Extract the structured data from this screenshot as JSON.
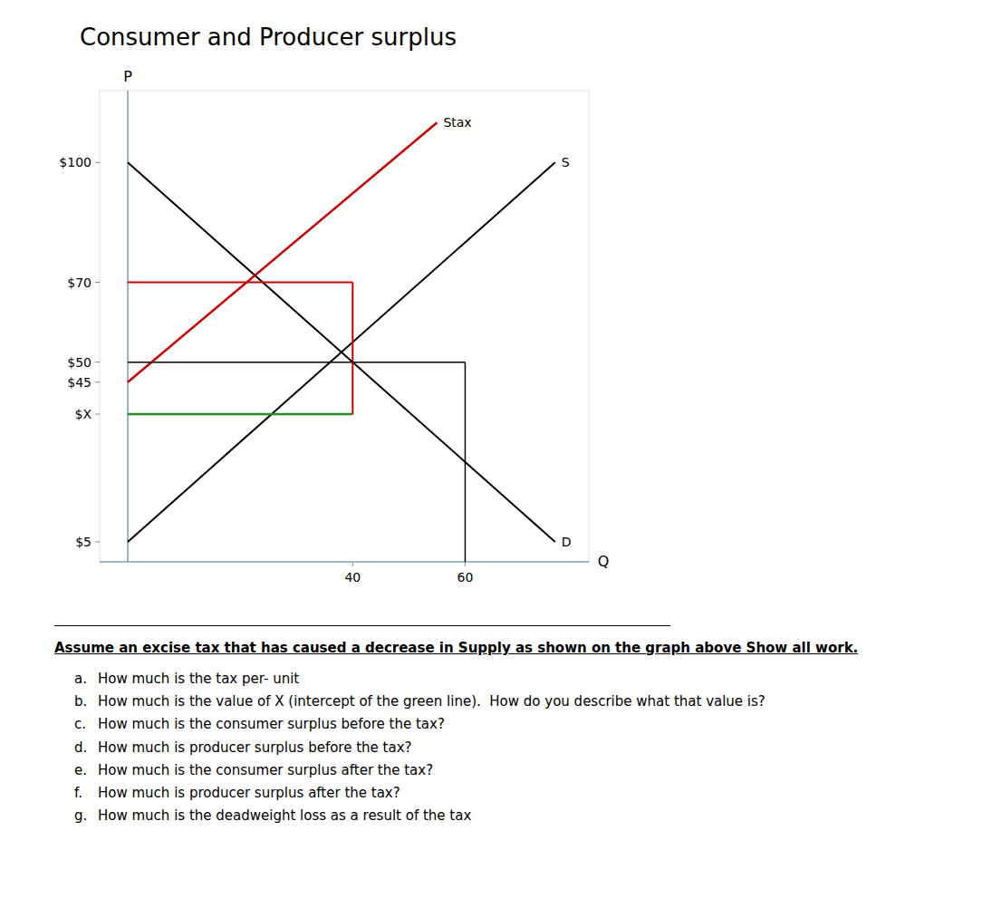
{
  "chart_data": {
    "type": "line",
    "title": "Consumer and Producer surplus",
    "x_label": "Q",
    "y_label": "P",
    "xlim": [
      -5,
      82
    ],
    "ylim": [
      0,
      118
    ],
    "xticks": [
      40,
      60
    ],
    "yticks": [
      {
        "value": 5,
        "label": "$5"
      },
      {
        "value": 37,
        "label": "$X"
      },
      {
        "value": 45,
        "label": "$45"
      },
      {
        "value": 50,
        "label": "$50"
      },
      {
        "value": 70,
        "label": "$70"
      },
      {
        "value": 100,
        "label": "$100"
      }
    ],
    "series": [
      {
        "name": "D",
        "color": "#000000",
        "x": [
          0,
          76
        ],
        "values": [
          100,
          5
        ]
      },
      {
        "name": "S",
        "color": "#000000",
        "x": [
          0,
          76
        ],
        "values": [
          5,
          100
        ]
      },
      {
        "name": "Stax",
        "color": "#cc0000",
        "x": [
          0,
          55
        ],
        "values": [
          45,
          110
        ]
      },
      {
        "color": "#228B22",
        "x": [
          0,
          40
        ],
        "values": [
          37,
          37
        ]
      },
      {
        "color": "#cc0000",
        "x": [
          0,
          40
        ],
        "values": [
          70,
          70
        ]
      },
      {
        "color": "#cc0000",
        "x": [
          40,
          40
        ],
        "values": [
          37,
          70
        ]
      },
      {
        "color": "#000000",
        "x": [
          0,
          60
        ],
        "values": [
          50,
          50
        ]
      },
      {
        "color": "#000000",
        "x": [
          60,
          60
        ],
        "values": [
          0,
          50
        ]
      }
    ],
    "instructions": "Assume an excise tax that has caused a decrease in Supply as shown on the graph above Show all work.",
    "questions": [
      {
        "letter": "a.",
        "text": "How much is the tax per- unit"
      },
      {
        "letter": "b.",
        "text": "How much is the value of X (intercept of the green line).  How do you describe what that value is?"
      },
      {
        "letter": "c.",
        "text": "How much is the consumer surplus before the tax?"
      },
      {
        "letter": "d.",
        "text": "How much is producer surplus before the tax?"
      },
      {
        "letter": "e.",
        "text": "How much is the consumer surplus after the tax?"
      },
      {
        "letter": "f.",
        "text": "How much is producer surplus after the tax?"
      },
      {
        "letter": "g.",
        "text": "How much is the deadweight loss as a result of the tax"
      }
    ]
  }
}
